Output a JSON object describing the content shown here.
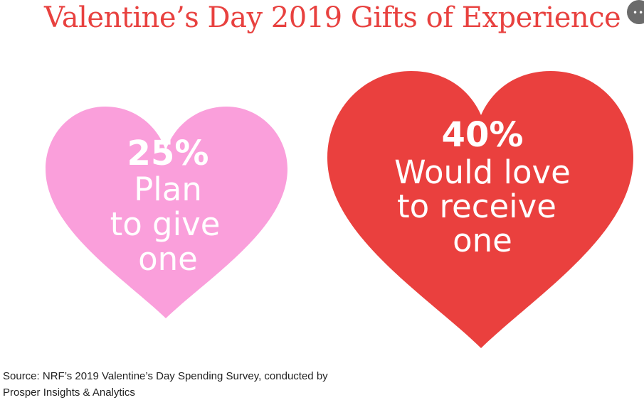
{
  "title": "Valentine’s Day 2019 Gifts of Experience",
  "more_button": {
    "icon": "more-dots-icon"
  },
  "chart_data": {
    "type": "other",
    "title": "Valentine’s Day 2019 Gifts of Experience",
    "items": [
      {
        "value": "25%",
        "lines": [
          "Plan",
          "to give",
          "one"
        ],
        "color": "#fa9fdb"
      },
      {
        "value": "40%",
        "lines": [
          "Would love",
          "to receive",
          "one"
        ],
        "color": "#ea403e"
      }
    ]
  },
  "source": {
    "line1": "Source: NRF’s 2019 Valentine’s Day Spending Survey, conducted by",
    "line2": "Prosper Insights & Analytics"
  }
}
